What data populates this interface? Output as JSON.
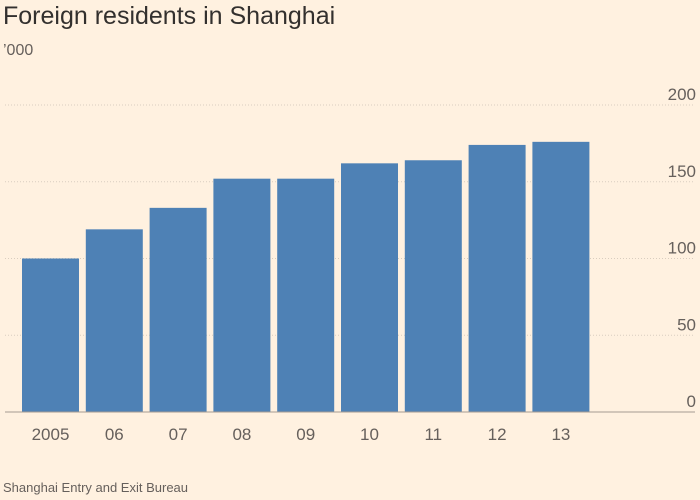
{
  "chart_data": {
    "type": "bar",
    "title": "Foreign residents in Shanghai",
    "subtitle": "’000",
    "source": "Shanghai Entry and Exit Bureau",
    "categories": [
      "2005",
      "06",
      "07",
      "08",
      "09",
      "10",
      "11",
      "12",
      "13"
    ],
    "values": [
      100,
      119,
      133,
      152,
      152,
      162,
      164,
      174,
      176
    ],
    "ylim": [
      0,
      200
    ],
    "yticks": [
      0,
      50,
      100,
      150,
      200
    ],
    "ytick_position": "right",
    "grid": true,
    "colors": {
      "bar": "#4e81b5",
      "background": "#fff1e0"
    }
  }
}
